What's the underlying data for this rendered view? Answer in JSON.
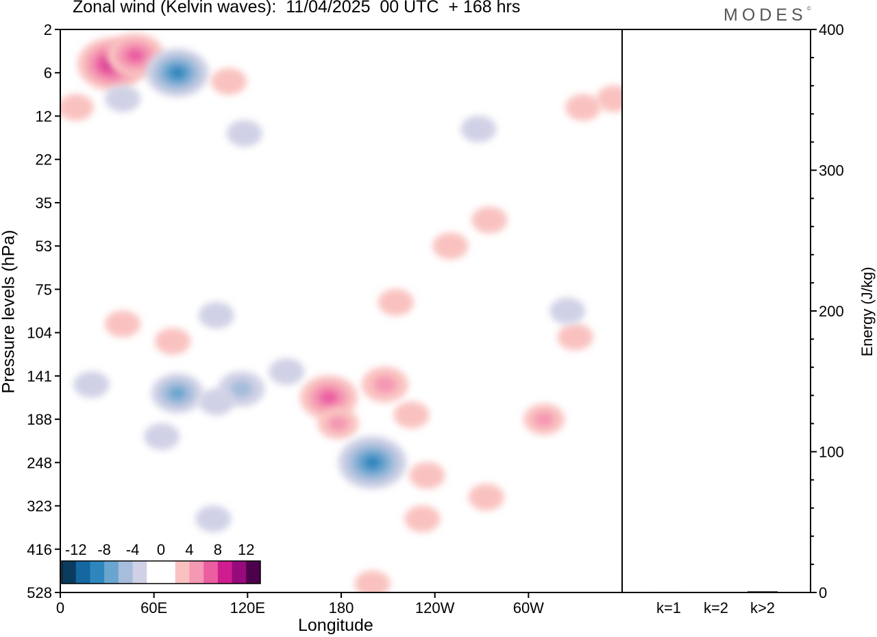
{
  "title": "Zonal wind (Kelvin waves):  11/04/2025  00 UTC  + 168 hrs",
  "brand": "MODES",
  "brand_mark": "©",
  "chart_data": [
    {
      "type": "heatmap",
      "title": "Zonal wind (Kelvin waves):  11/04/2025  00 UTC  + 168 hrs",
      "xlabel": "Longitude",
      "ylabel": "Pressure levels (hPa)",
      "x_ticks": [
        "0",
        "60E",
        "120E",
        "180",
        "120W",
        "60W"
      ],
      "x_tick_values": [
        0,
        60,
        120,
        180,
        240,
        300
      ],
      "xlim": [
        0,
        360
      ],
      "y_ticks": [
        "2",
        "6",
        "12",
        "22",
        "35",
        "53",
        "75",
        "104",
        "141",
        "188",
        "248",
        "323",
        "416",
        "528"
      ],
      "colorbar": {
        "labels": [
          "-12",
          "-8",
          "-4",
          "0",
          "4",
          "8",
          "12"
        ],
        "colors": [
          "#0b3b5f",
          "#1467a0",
          "#2e86bd",
          "#6aa5cf",
          "#a6bddb",
          "#d0d1e6",
          "#ffffff",
          "#ffffff",
          "#f9c2c0",
          "#f598b3",
          "#eb5fa1",
          "#cf1d8f",
          "#960a7c",
          "#4d004b"
        ]
      },
      "anomalies": [
        {
          "lon": 33,
          "lev": 0.8,
          "value": 9
        },
        {
          "lon": 48,
          "lev": 0.6,
          "value": 7
        },
        {
          "lon": 75,
          "lev": 1.0,
          "value": -8
        },
        {
          "lon": 40,
          "lev": 1.6,
          "value": -3
        },
        {
          "lon": 10,
          "lev": 1.8,
          "value": 3
        },
        {
          "lon": 108,
          "lev": 1.2,
          "value": 3
        },
        {
          "lon": 118,
          "lev": 2.4,
          "value": -3
        },
        {
          "lon": 268,
          "lev": 2.3,
          "value": -3
        },
        {
          "lon": 335,
          "lev": 1.8,
          "value": 3
        },
        {
          "lon": 355,
          "lev": 1.6,
          "value": 3
        },
        {
          "lon": 275,
          "lev": 4.4,
          "value": 3
        },
        {
          "lon": 250,
          "lev": 5.0,
          "value": 3
        },
        {
          "lon": 215,
          "lev": 6.3,
          "value": 3
        },
        {
          "lon": 40,
          "lev": 6.8,
          "value": 3
        },
        {
          "lon": 72,
          "lev": 7.2,
          "value": 3
        },
        {
          "lon": 100,
          "lev": 6.6,
          "value": -3
        },
        {
          "lon": 75,
          "lev": 8.4,
          "value": -6
        },
        {
          "lon": 116,
          "lev": 8.3,
          "value": -5
        },
        {
          "lon": 100,
          "lev": 8.6,
          "value": -3
        },
        {
          "lon": 20,
          "lev": 8.2,
          "value": -3
        },
        {
          "lon": 145,
          "lev": 7.9,
          "value": -3
        },
        {
          "lon": 172,
          "lev": 8.5,
          "value": 7
        },
        {
          "lon": 178,
          "lev": 9.1,
          "value": 4
        },
        {
          "lon": 208,
          "lev": 8.2,
          "value": 5
        },
        {
          "lon": 225,
          "lev": 8.9,
          "value": 3
        },
        {
          "lon": 200,
          "lev": 10.0,
          "value": -9
        },
        {
          "lon": 235,
          "lev": 10.3,
          "value": 3
        },
        {
          "lon": 232,
          "lev": 11.3,
          "value": 3
        },
        {
          "lon": 310,
          "lev": 9.0,
          "value": 4
        },
        {
          "lon": 273,
          "lev": 10.8,
          "value": 3
        },
        {
          "lon": 98,
          "lev": 11.3,
          "value": -3
        },
        {
          "lon": 200,
          "lev": 12.8,
          "value": 3
        },
        {
          "lon": 65,
          "lev": 9.4,
          "value": -3
        },
        {
          "lon": 330,
          "lev": 7.1,
          "value": 3
        },
        {
          "lon": 325,
          "lev": 6.5,
          "value": -3
        }
      ]
    },
    {
      "type": "bar",
      "title": "",
      "ylabel": "Energy (J/kg)",
      "categories": [
        "k=1",
        "k=2",
        "k>2"
      ],
      "values": [
        0.5,
        0.2,
        0.8
      ],
      "ylim": [
        0,
        400
      ],
      "y_ticks": [
        "0",
        "100",
        "200",
        "300",
        "400"
      ]
    }
  ]
}
